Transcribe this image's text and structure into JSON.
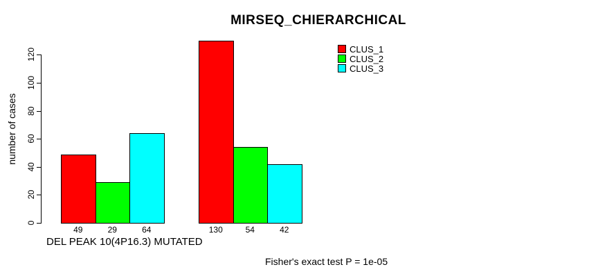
{
  "chart_data": {
    "type": "bar",
    "title": "MIRSEQ_CHIERARCHICAL",
    "ylabel": "number of cases",
    "xlabel": "",
    "categories": [
      "DEL PEAK 10(4P16.3) MUTATED",
      ""
    ],
    "group_axis_label": "DEL PEAK 10(4P16.3) MUTATED",
    "series": [
      {
        "name": "CLUS_1",
        "color": "#ff0000",
        "values": [
          49,
          130
        ]
      },
      {
        "name": "CLUS_2",
        "color": "#00ff00",
        "values": [
          29,
          54
        ]
      },
      {
        "name": "CLUS_3",
        "color": "#00ffff",
        "values": [
          64,
          42
        ]
      }
    ],
    "yticks": [
      0,
      20,
      40,
      60,
      80,
      100,
      120
    ],
    "ylim": [
      0,
      130
    ],
    "grid": false,
    "legend_position": "top-right",
    "bar_value_labels_shown": true,
    "annotation": "Fisher's exact test P = 1e-05"
  }
}
